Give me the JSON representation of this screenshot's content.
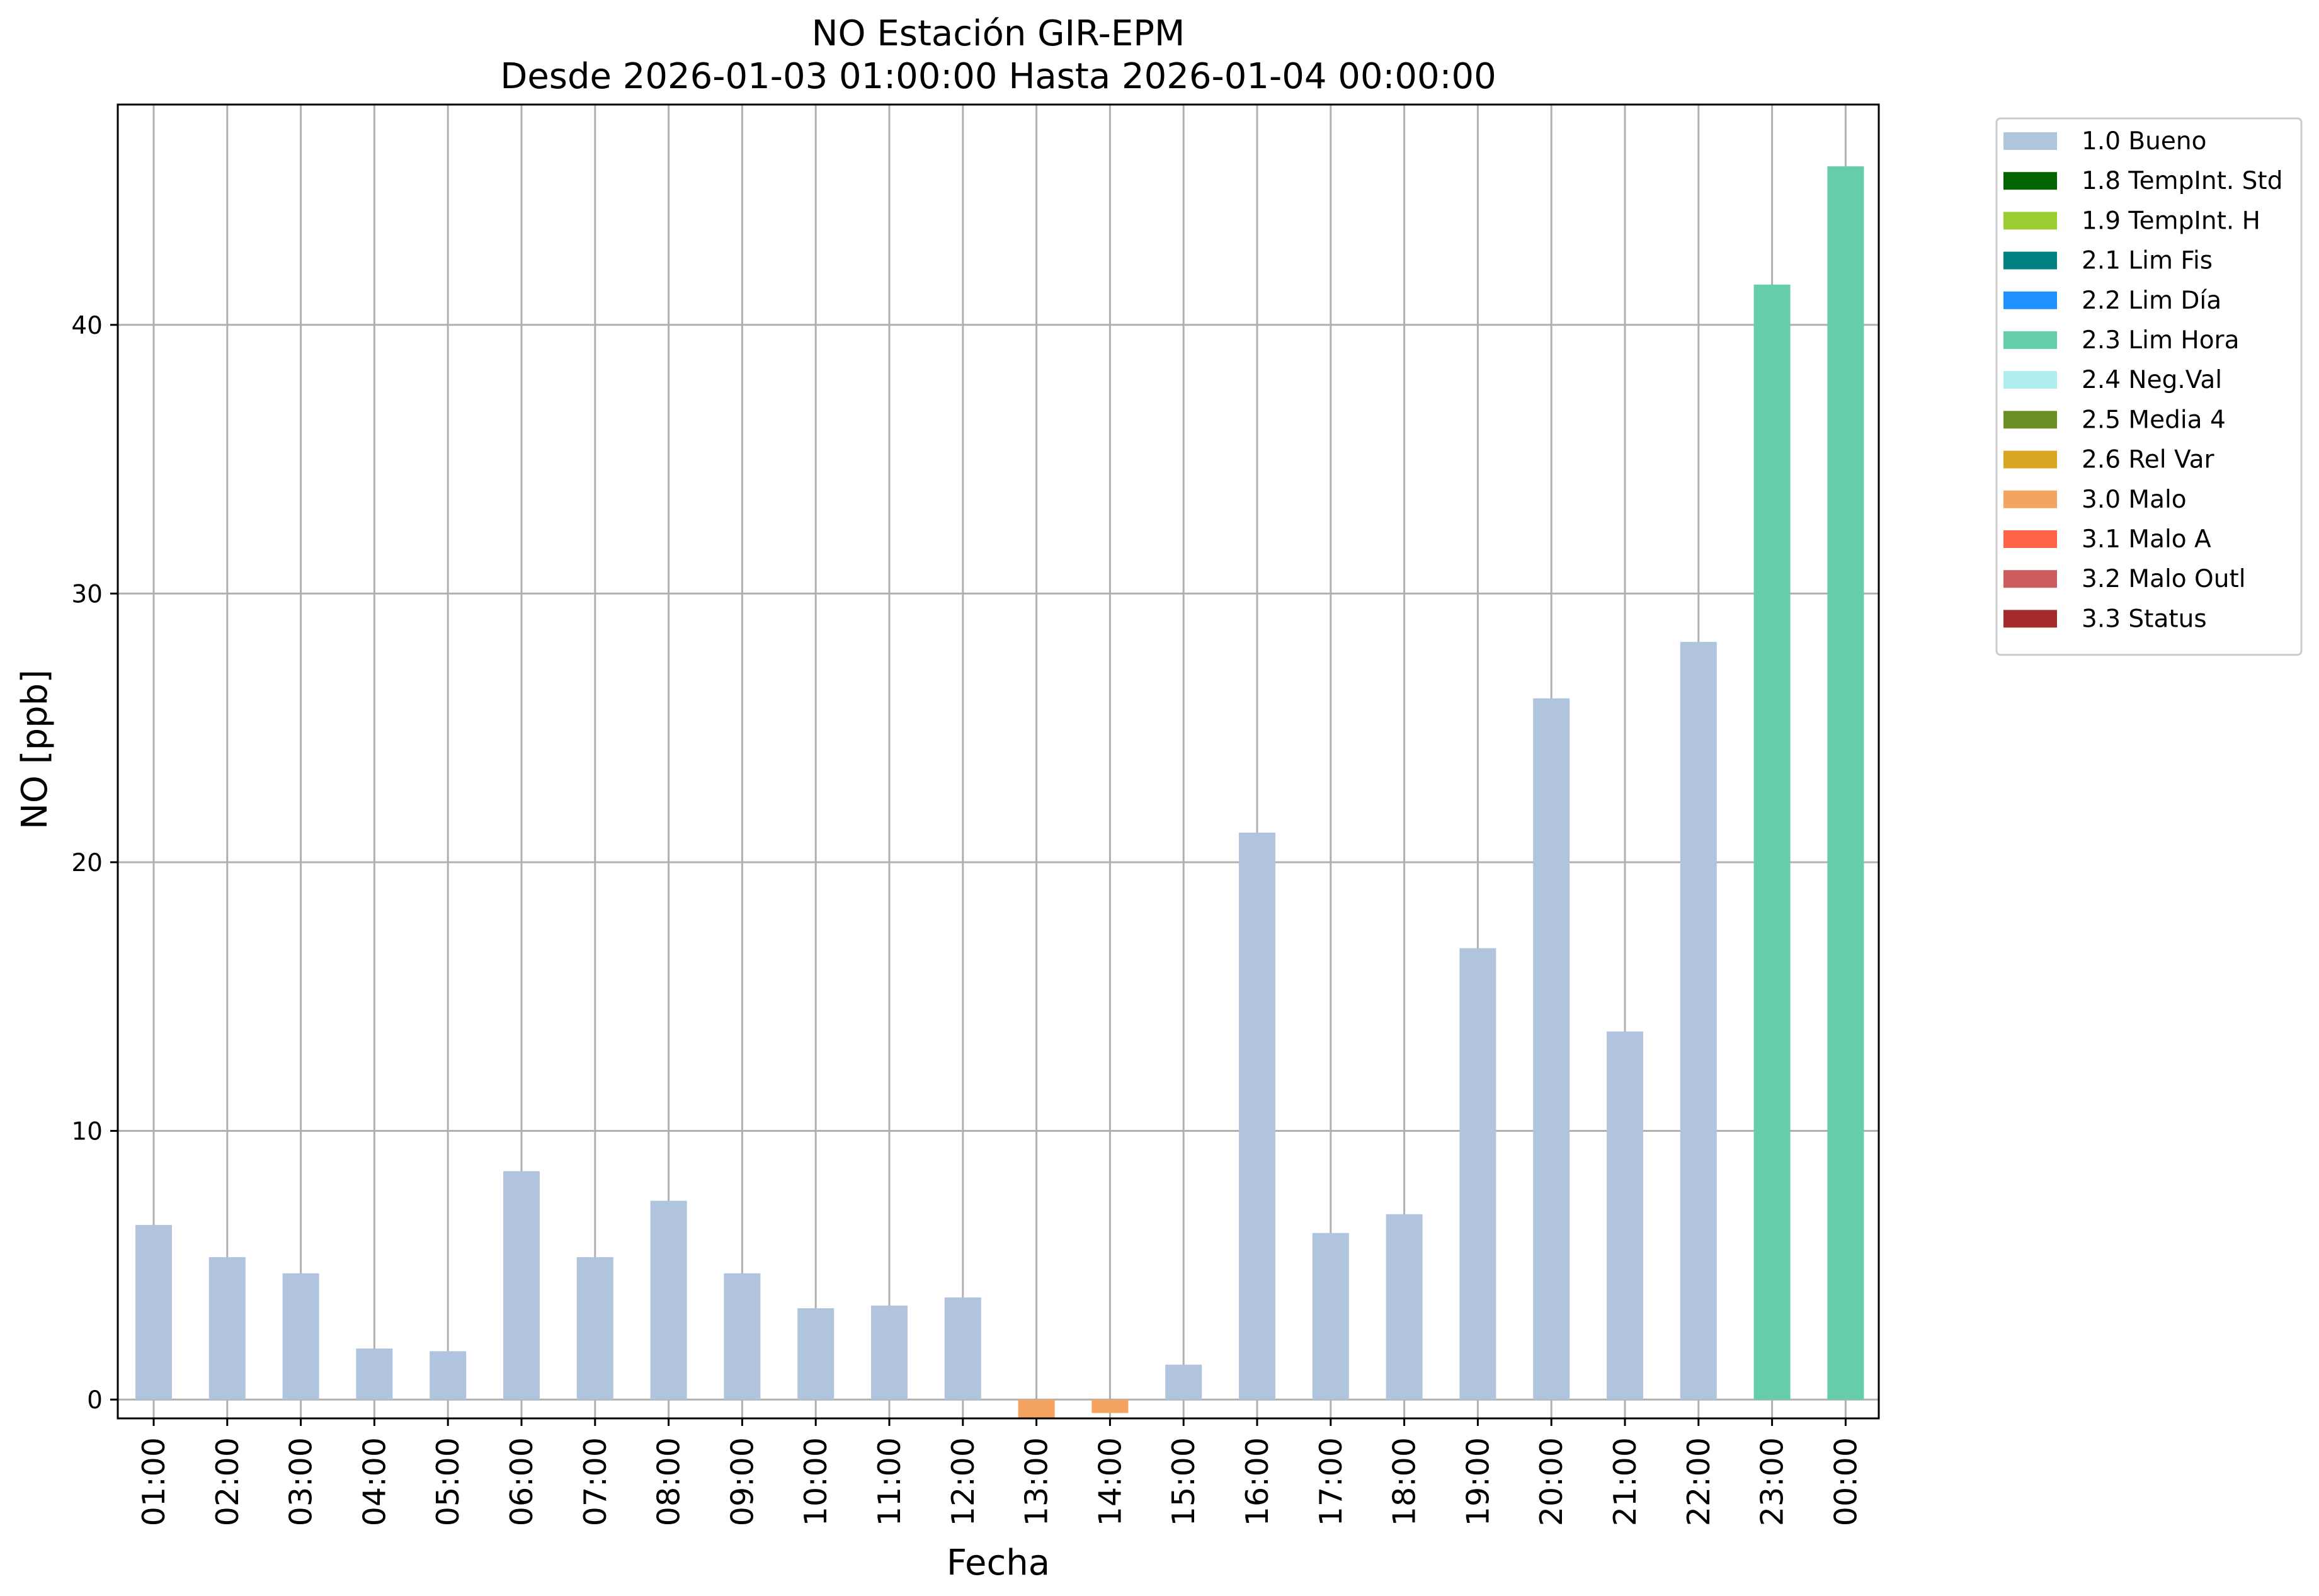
{
  "chart_data": {
    "type": "bar",
    "title": "NO Estación GIR-EPM",
    "subtitle": "Desde 2026-01-03 01:00:00 Hasta 2026-01-04 00:00:00",
    "xlabel": "Fecha",
    "ylabel": "NO [ppb]",
    "ylim": [
      -0.7,
      48.2
    ],
    "yticks": [
      0,
      10,
      20,
      30,
      40
    ],
    "grid": true,
    "legend_position": "outside-top-right",
    "categories": [
      "01:00",
      "02:00",
      "03:00",
      "04:00",
      "05:00",
      "06:00",
      "07:00",
      "08:00",
      "09:00",
      "10:00",
      "11:00",
      "12:00",
      "13:00",
      "14:00",
      "15:00",
      "16:00",
      "17:00",
      "18:00",
      "19:00",
      "20:00",
      "21:00",
      "22:00",
      "23:00",
      "00:00"
    ],
    "values": [
      6.5,
      5.3,
      4.7,
      1.9,
      1.8,
      8.5,
      5.3,
      7.4,
      4.7,
      3.4,
      3.5,
      3.8,
      -0.7,
      -0.5,
      1.3,
      21.1,
      6.2,
      6.9,
      16.8,
      26.1,
      13.7,
      28.2,
      41.5,
      45.9
    ],
    "flags": [
      "1.0 Bueno",
      "1.0 Bueno",
      "1.0 Bueno",
      "1.0 Bueno",
      "1.0 Bueno",
      "1.0 Bueno",
      "1.0 Bueno",
      "1.0 Bueno",
      "1.0 Bueno",
      "1.0 Bueno",
      "1.0 Bueno",
      "1.0 Bueno",
      "3.0 Malo",
      "3.0 Malo",
      "1.0 Bueno",
      "1.0 Bueno",
      "1.0 Bueno",
      "1.0 Bueno",
      "1.0 Bueno",
      "1.0 Bueno",
      "1.0 Bueno",
      "1.0 Bueno",
      "2.3 Lim Hora",
      "2.3 Lim Hora"
    ],
    "legend": [
      {
        "label": "1.0 Bueno",
        "color": "#b0c4de"
      },
      {
        "label": "1.8 TempInt. Std",
        "color": "#006400"
      },
      {
        "label": "1.9 TempInt. H",
        "color": "#9acd32"
      },
      {
        "label": "2.1 Lim Fis",
        "color": "#008080"
      },
      {
        "label": "2.2 Lim Día",
        "color": "#1e90ff"
      },
      {
        "label": "2.3 Lim Hora",
        "color": "#66cdaa"
      },
      {
        "label": "2.4 Neg.Val",
        "color": "#afeeee"
      },
      {
        "label": "2.5 Media 4",
        "color": "#6b8e23"
      },
      {
        "label": "2.6 Rel Var",
        "color": "#daa520"
      },
      {
        "label": "3.0 Malo",
        "color": "#f4a460"
      },
      {
        "label": "3.1 Malo A",
        "color": "#ff6347"
      },
      {
        "label": "3.2 Malo Outl",
        "color": "#cd5c5c"
      },
      {
        "label": "3.3 Status",
        "color": "#a52a2a"
      }
    ]
  }
}
